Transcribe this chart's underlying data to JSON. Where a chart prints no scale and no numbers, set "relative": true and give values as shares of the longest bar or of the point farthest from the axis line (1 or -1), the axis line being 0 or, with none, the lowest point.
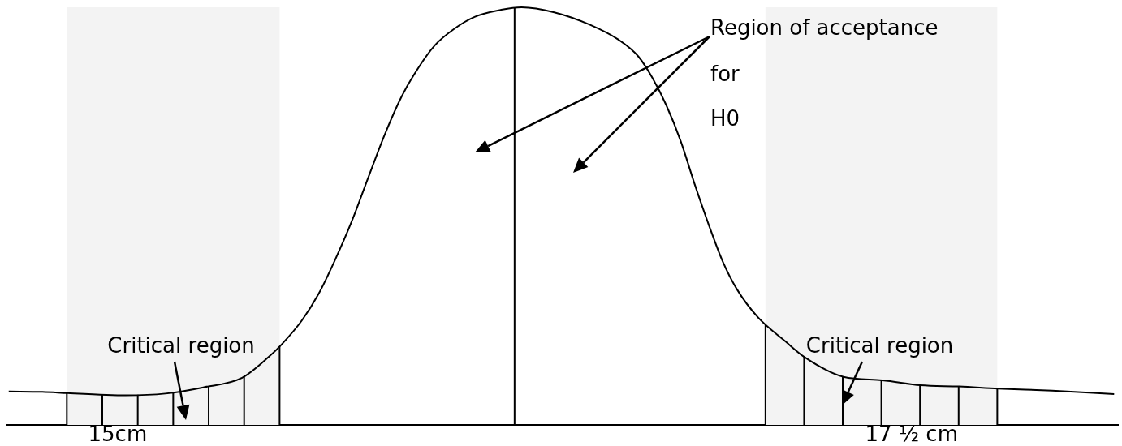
{
  "chart_data": {
    "type": "line",
    "relative": true,
    "x": [
      14.657,
      14.763,
      14.842,
      14.964,
      15.025,
      15.15,
      15.27,
      15.392,
      15.476,
      15.518,
      15.58,
      15.633,
      15.684,
      15.738,
      15.79,
      15.842,
      15.894,
      15.946,
      15.999,
      16.061,
      16.124,
      16.208,
      16.272,
      16.375,
      16.485,
      16.574,
      16.64,
      16.684,
      16.728,
      16.773,
      16.816,
      16.862,
      16.905,
      16.95,
      17.016,
      17.103,
      17.162,
      17.286,
      17.408,
      17.528,
      17.65,
      17.772,
      17.943,
      18.138
    ],
    "values": [
      0.08,
      0.079,
      0.076,
      0.072,
      0.071,
      0.075,
      0.09,
      0.113,
      0.163,
      0.194,
      0.25,
      0.314,
      0.394,
      0.489,
      0.594,
      0.697,
      0.786,
      0.854,
      0.909,
      0.949,
      0.977,
      0.994,
      1,
      0.988,
      0.959,
      0.924,
      0.882,
      0.831,
      0.765,
      0.68,
      0.579,
      0.478,
      0.392,
      0.325,
      0.258,
      0.2,
      0.163,
      0.115,
      0.107,
      0.095,
      0.092,
      0.087,
      0.082,
      0.074
    ],
    "color": "#000000",
    "marker": "none",
    "line_style": "solid",
    "xlim": [
      14.65,
      18.15
    ],
    "xticks": [
      {
        "value": 15,
        "label": "15cm"
      },
      {
        "value": 17.5,
        "label": "17 ½ cm"
      }
    ],
    "tick_labels": "x",
    "bands": [
      {
        "axis": "x",
        "from": 14.84,
        "to": 15.51,
        "label": "Critical region"
      },
      {
        "axis": "x",
        "from": 17.04,
        "to": 17.77,
        "label": "Critical region"
      }
    ],
    "ref_lines": [
      {
        "axis": "x",
        "value": 16.25
      }
    ],
    "annotations": [
      "Region of acceptance",
      "for",
      "H0"
    ]
  }
}
